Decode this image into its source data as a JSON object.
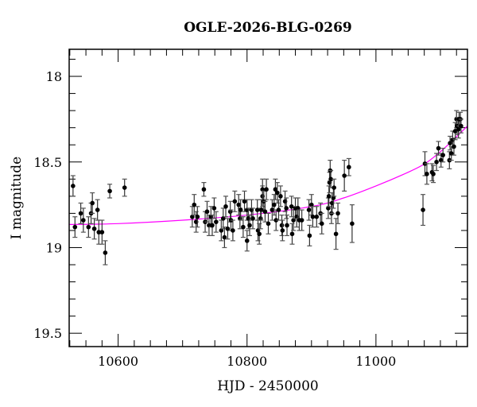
{
  "chart_data": {
    "type": "scatter",
    "title": "OGLE-2026-BLG-0269",
    "xlabel": "HJD - 2450000",
    "ylabel": "I magnitude",
    "xlim": [
      10524,
      11142
    ],
    "ylim": [
      19.578,
      17.842
    ],
    "y_inverted": true,
    "x_ticks": [
      10600,
      10800,
      11000
    ],
    "x_tick_labels": [
      "10600",
      "10800",
      "11000"
    ],
    "x_minor_step": 25,
    "y_ticks": [
      18,
      18.5,
      19,
      19.5
    ],
    "y_tick_labels": [
      "18",
      "18.5",
      "19",
      "19.5"
    ],
    "y_minor_step": 0.1,
    "grid": false,
    "colors": {
      "points": "#000000",
      "errorbars": "#000000",
      "model": "#ff00ff"
    },
    "points_day_mag_err": [
      [
        10530,
        18.64,
        0.06
      ],
      [
        10533,
        18.88,
        0.06
      ],
      [
        10542,
        18.8,
        0.06
      ],
      [
        10546,
        18.84,
        0.07
      ],
      [
        10554,
        18.88,
        0.06
      ],
      [
        10558,
        18.8,
        0.06
      ],
      [
        10560,
        18.74,
        0.06
      ],
      [
        10563,
        18.89,
        0.06
      ],
      [
        10568,
        18.78,
        0.06
      ],
      [
        10570,
        18.91,
        0.07
      ],
      [
        10575,
        18.91,
        0.07
      ],
      [
        10580,
        19.03,
        0.07
      ],
      [
        10587,
        18.67,
        0.04
      ],
      [
        10610,
        18.65,
        0.05
      ],
      [
        10715,
        18.82,
        0.06
      ],
      [
        10718,
        18.75,
        0.06
      ],
      [
        10721,
        18.85,
        0.06
      ],
      [
        10723,
        18.82,
        0.06
      ],
      [
        10733,
        18.66,
        0.04
      ],
      [
        10735,
        18.85,
        0.06
      ],
      [
        10738,
        18.79,
        0.06
      ],
      [
        10741,
        18.87,
        0.06
      ],
      [
        10744,
        18.82,
        0.06
      ],
      [
        10746,
        18.87,
        0.06
      ],
      [
        10749,
        18.77,
        0.06
      ],
      [
        10752,
        18.85,
        0.06
      ],
      [
        10760,
        18.9,
        0.06
      ],
      [
        10763,
        18.83,
        0.06
      ],
      [
        10765,
        18.94,
        0.06
      ],
      [
        10767,
        18.76,
        0.06
      ],
      [
        10770,
        18.89,
        0.06
      ],
      [
        10774,
        18.79,
        0.06
      ],
      [
        10775,
        18.84,
        0.06
      ],
      [
        10778,
        18.9,
        0.06
      ],
      [
        10781,
        18.73,
        0.06
      ],
      [
        10787,
        18.75,
        0.06
      ],
      [
        10789,
        18.83,
        0.06
      ],
      [
        10790,
        18.78,
        0.06
      ],
      [
        10794,
        18.88,
        0.06
      ],
      [
        10796,
        18.73,
        0.06
      ],
      [
        10800,
        18.78,
        0.06
      ],
      [
        10800,
        18.96,
        0.06
      ],
      [
        10802,
        18.83,
        0.06
      ],
      [
        10804,
        18.87,
        0.06
      ],
      [
        10807,
        18.78,
        0.06
      ],
      [
        10809,
        18.83,
        0.06
      ],
      [
        10816,
        18.78,
        0.06
      ],
      [
        10817,
        18.9,
        0.06
      ],
      [
        10819,
        18.92,
        0.06
      ],
      [
        10821,
        18.83,
        0.06
      ],
      [
        10822,
        18.78,
        0.06
      ],
      [
        10824,
        18.7,
        0.06
      ],
      [
        10824,
        18.66,
        0.06
      ],
      [
        10826,
        18.73,
        0.06
      ],
      [
        10828,
        18.79,
        0.06
      ],
      [
        10830,
        18.66,
        0.06
      ],
      [
        10833,
        18.86,
        0.06
      ],
      [
        10839,
        18.78,
        0.06
      ],
      [
        10842,
        18.75,
        0.06
      ],
      [
        10844,
        18.66,
        0.06
      ],
      [
        10845,
        18.84,
        0.06
      ],
      [
        10847,
        18.68,
        0.06
      ],
      [
        10849,
        18.78,
        0.06
      ],
      [
        10852,
        18.7,
        0.06
      ],
      [
        10854,
        18.87,
        0.06
      ],
      [
        10855,
        18.9,
        0.06
      ],
      [
        10859,
        18.73,
        0.06
      ],
      [
        10861,
        18.77,
        0.06
      ],
      [
        10862,
        18.87,
        0.06
      ],
      [
        10869,
        18.76,
        0.06
      ],
      [
        10870,
        18.92,
        0.06
      ],
      [
        10872,
        18.84,
        0.06
      ],
      [
        10875,
        18.77,
        0.06
      ],
      [
        10877,
        18.82,
        0.06
      ],
      [
        10879,
        18.77,
        0.06
      ],
      [
        10881,
        18.84,
        0.06
      ],
      [
        10885,
        18.84,
        0.06
      ],
      [
        10896,
        18.78,
        0.06
      ],
      [
        10897,
        18.93,
        0.06
      ],
      [
        10900,
        18.75,
        0.06
      ],
      [
        10902,
        18.82,
        0.06
      ],
      [
        10908,
        18.82,
        0.06
      ],
      [
        10914,
        18.8,
        0.06
      ],
      [
        10916,
        18.86,
        0.06
      ],
      [
        10926,
        18.77,
        0.06
      ],
      [
        10927,
        18.7,
        0.06
      ],
      [
        10928,
        18.62,
        0.06
      ],
      [
        10929,
        18.55,
        0.06
      ],
      [
        10930,
        18.6,
        0.05
      ],
      [
        10931,
        18.8,
        0.06
      ],
      [
        10932,
        18.74,
        0.06
      ],
      [
        10934,
        18.71,
        0.06
      ],
      [
        10935,
        18.65,
        0.05
      ],
      [
        10938,
        18.92,
        0.09
      ],
      [
        10941,
        18.8,
        0.06
      ],
      [
        10951,
        18.58,
        0.09
      ],
      [
        10958,
        18.53,
        0.05
      ],
      [
        10963,
        18.86,
        0.11
      ],
      [
        11073,
        18.78,
        0.09
      ],
      [
        11076,
        18.51,
        0.07
      ],
      [
        11079,
        18.57,
        0.06
      ],
      [
        11087,
        18.56,
        0.05
      ],
      [
        11089,
        18.57,
        0.05
      ],
      [
        11094,
        18.5,
        0.05
      ],
      [
        11097,
        18.42,
        0.04
      ],
      [
        11101,
        18.49,
        0.04
      ],
      [
        11104,
        18.46,
        0.04
      ],
      [
        11114,
        18.49,
        0.05
      ],
      [
        11115,
        18.39,
        0.04
      ],
      [
        11117,
        18.45,
        0.04
      ],
      [
        11119,
        18.37,
        0.05
      ],
      [
        11121,
        18.41,
        0.05
      ],
      [
        11123,
        18.32,
        0.05
      ],
      [
        11125,
        18.25,
        0.05
      ],
      [
        11126,
        18.29,
        0.05
      ],
      [
        11128,
        18.31,
        0.05
      ],
      [
        11129,
        18.25,
        0.04
      ],
      [
        11131,
        18.25,
        0.04
      ],
      [
        11132,
        18.29,
        0.04
      ]
    ],
    "model_curve_day_mag": [
      [
        10524,
        18.865
      ],
      [
        10600,
        18.86
      ],
      [
        10700,
        18.84
      ],
      [
        10800,
        18.81
      ],
      [
        10900,
        18.76
      ],
      [
        10950,
        18.71
      ],
      [
        11000,
        18.64
      ],
      [
        11050,
        18.56
      ],
      [
        11076,
        18.51
      ],
      [
        11100,
        18.44
      ],
      [
        11120,
        18.37
      ],
      [
        11142,
        18.29
      ]
    ]
  }
}
